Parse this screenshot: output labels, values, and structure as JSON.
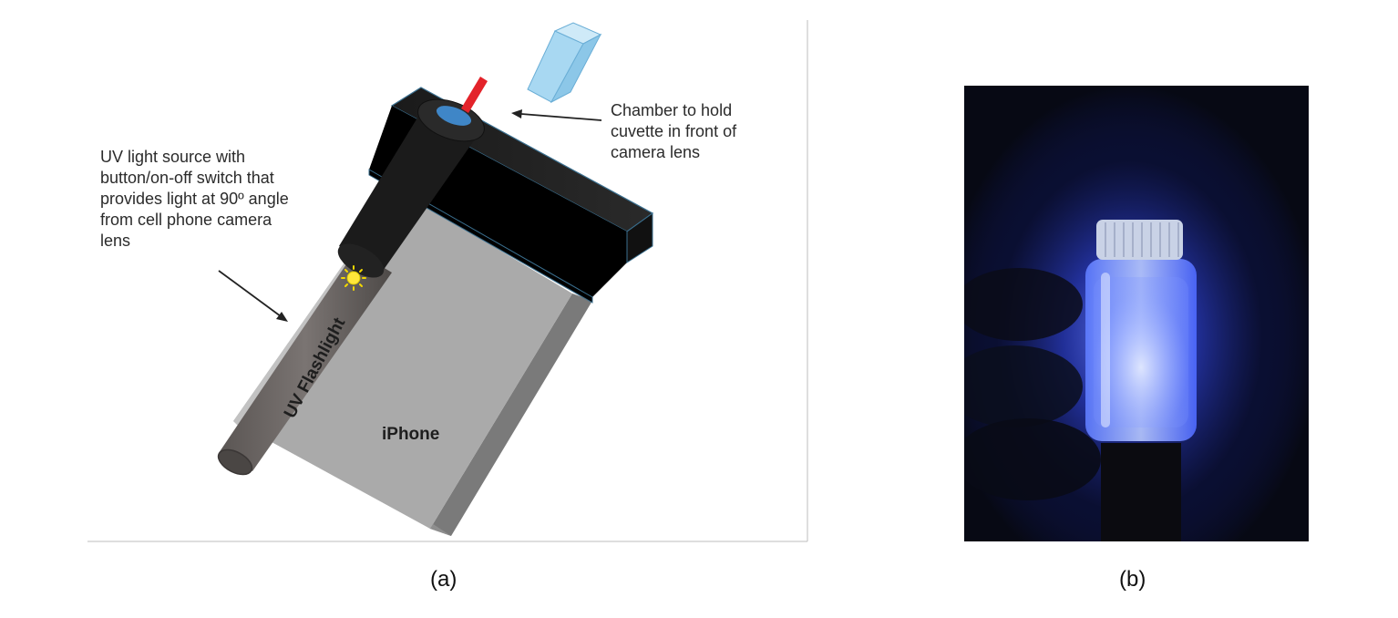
{
  "panel_a": {
    "uv_callout": "UV light source with\nbutton/on-off switch that\nprovides light at 90º angle\nfrom cell phone camera\nlens",
    "chamber_callout": "Chamber to hold\ncuvette in front of\ncamera lens",
    "flashlight_label": "UV Flashlight",
    "phone_label": "iPhone",
    "caption": "(a)",
    "colors": {
      "phone": "#a8a8a8",
      "chamber": "#000000",
      "flashlight": "#6a6563",
      "cuvette": "#9fd3ef",
      "red_indicator": "#e3232a",
      "uv_led": "#ffe73a"
    }
  },
  "panel_b": {
    "caption": "(b)",
    "colors": {
      "background": "#0a0d1a",
      "uv_glow": "#3d5bff"
    }
  }
}
